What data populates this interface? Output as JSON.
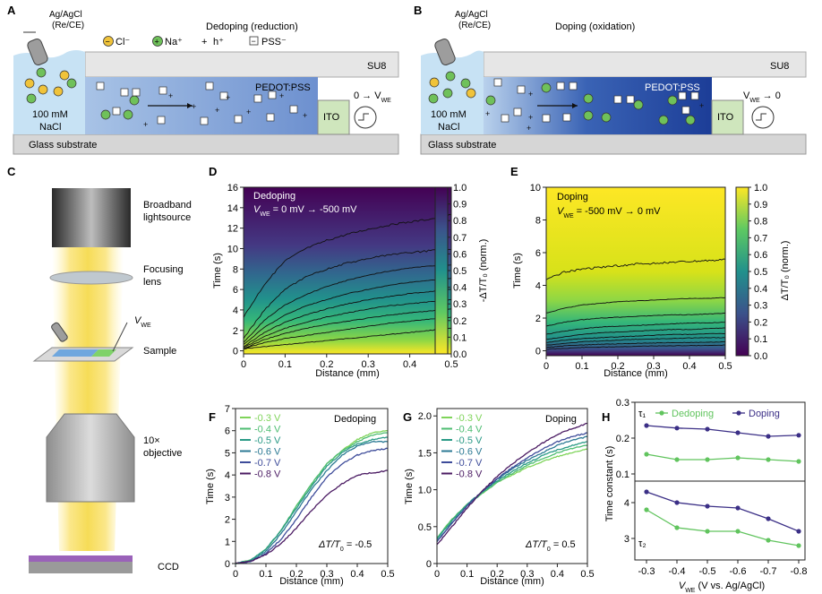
{
  "panel_a": {
    "letter": "A",
    "title": "Dedoping (reduction)",
    "electrode": [
      "Ag/AgCl",
      "(Re/CE)"
    ],
    "legend": {
      "cl": "Cl⁻",
      "na": "Na⁺",
      "h": "h⁺",
      "pss": "PSS⁻"
    },
    "su8": "SU8",
    "film": "PEDOT:PSS",
    "electrolyte": [
      "100 mM",
      "NaCl"
    ],
    "ito": "ITO",
    "voltage": "0 → V",
    "voltage_sub": "WE",
    "substrate": "Glass substrate"
  },
  "panel_b": {
    "letter": "B",
    "title": "Doping (oxidation)",
    "electrode": [
      "Ag/AgCl",
      "(Re/CE)"
    ],
    "su8": "SU8",
    "film": "PEDOT:PSS",
    "electrolyte": [
      "100 mM",
      "NaCl"
    ],
    "ito": "ITO",
    "voltage": "V",
    "voltage_sub": "WE",
    "voltage_tail": " → 0",
    "substrate": "Glass substrate"
  },
  "panel_c": {
    "letter": "C",
    "labels": [
      "Broadband",
      "lightsource",
      "Focusing",
      "lens",
      "Sample",
      "10×",
      "objective",
      "CCD"
    ],
    "vwe": "V",
    "vwe_sub": "WE"
  },
  "colors": {
    "dedoping": "#61c45e",
    "doping": "#3b2f86",
    "pedot_dark": "#24449c",
    "pedot_light": "#a8c3e6",
    "electrolyte": "#c7e2f4",
    "ito": "#cfe6bd",
    "glass": "#d6d6d6"
  },
  "chart_data": [
    {
      "panel": "D",
      "type": "heatmap",
      "title": "Dedoping",
      "subtitle": [
        "V",
        "WE",
        " = 0 mV → -500 mV"
      ],
      "xlabel": "Distance (mm)",
      "ylabel": "Time (s)",
      "xlim": [
        0,
        0.5
      ],
      "ylim": [
        -0.3,
        16
      ],
      "xticks": [
        "0",
        "0.1",
        "0.2",
        "0.3",
        "0.4",
        "0.5"
      ],
      "yticks": [
        "0",
        "2",
        "4",
        "6",
        "8",
        "10",
        "12",
        "14",
        "16"
      ],
      "colorbar": {
        "label": "-ΔT/T₀ (norm.)",
        "ticks": [
          "1.0",
          "0.9",
          "0.8",
          "0.7",
          "0.6",
          "0.5",
          "0.4",
          "0.3",
          "0.2",
          "0.1",
          "0.0"
        ]
      },
      "contours": [
        {
          "level": 0.1,
          "values": [
            0.2,
            0.4,
            0.6,
            0.8,
            1.0,
            1.2,
            1.4,
            1.6,
            1.8,
            2.0,
            2.2
          ]
        },
        {
          "level": 0.2,
          "values": [
            0.2,
            0.8,
            1.2,
            1.5,
            1.8,
            2.1,
            2.4,
            2.7,
            2.9,
            3.1,
            3.3
          ]
        },
        {
          "level": 0.3,
          "values": [
            0.2,
            1.1,
            1.7,
            2.2,
            2.6,
            2.9,
            3.2,
            3.5,
            3.7,
            3.9,
            4.1
          ]
        },
        {
          "level": 0.4,
          "values": [
            0.3,
            1.4,
            2.2,
            2.8,
            3.3,
            3.7,
            4.1,
            4.4,
            4.6,
            4.8,
            5.0
          ]
        },
        {
          "level": 0.5,
          "values": [
            0.4,
            1.8,
            2.8,
            3.5,
            4.1,
            4.6,
            5.0,
            5.3,
            5.6,
            5.8,
            6.0
          ]
        },
        {
          "level": 0.6,
          "values": [
            0.6,
            2.3,
            3.5,
            4.4,
            5.0,
            5.6,
            6.0,
            6.4,
            6.7,
            6.9,
            7.1
          ]
        },
        {
          "level": 0.7,
          "values": [
            0.8,
            3.0,
            4.5,
            5.5,
            6.3,
            6.9,
            7.4,
            7.8,
            8.1,
            8.3,
            8.4
          ]
        },
        {
          "level": 0.8,
          "values": [
            1.2,
            4.0,
            6.0,
            7.2,
            8.0,
            8.6,
            9.0,
            9.4,
            9.6,
            9.8,
            9.9
          ]
        },
        {
          "level": 0.9,
          "values": [
            3.3,
            6.5,
            8.8,
            10.0,
            10.8,
            11.4,
            11.9,
            12.3,
            12.6,
            12.9,
            13.3
          ]
        }
      ]
    },
    {
      "panel": "E",
      "type": "heatmap",
      "title": "Doping",
      "subtitle": [
        "V",
        "WE",
        " = -500 mV → 0 mV"
      ],
      "xlabel": "Distance (mm)",
      "ylabel": "Time (s)",
      "xlim": [
        0,
        0.5
      ],
      "ylim": [
        -0.3,
        10
      ],
      "xticks": [
        "0",
        "0.1",
        "0.2",
        "0.3",
        "0.4",
        "0.5"
      ],
      "yticks": [
        "0",
        "2",
        "4",
        "6",
        "8",
        "10"
      ],
      "colorbar": {
        "label": "ΔT/T₀ (norm.)",
        "ticks": [
          "1.0",
          "0.9",
          "0.8",
          "0.7",
          "0.6",
          "0.5",
          "0.4",
          "0.3",
          "0.2",
          "0.1",
          "0.0"
        ]
      },
      "contours": [
        {
          "level": 0.1,
          "values": [
            0.1,
            0.15,
            0.2,
            0.22,
            0.25,
            0.27,
            0.3,
            0.3,
            0.32,
            0.33,
            0.35
          ]
        },
        {
          "level": 0.2,
          "values": [
            0.2,
            0.3,
            0.35,
            0.4,
            0.42,
            0.45,
            0.47,
            0.5,
            0.5,
            0.52,
            0.55
          ]
        },
        {
          "level": 0.3,
          "values": [
            0.35,
            0.45,
            0.55,
            0.6,
            0.65,
            0.7,
            0.72,
            0.75,
            0.78,
            0.8,
            0.8
          ]
        },
        {
          "level": 0.4,
          "values": [
            0.5,
            0.65,
            0.75,
            0.8,
            0.85,
            0.9,
            0.95,
            1.0,
            1.0,
            1.05,
            1.05
          ]
        },
        {
          "level": 0.5,
          "values": [
            0.7,
            0.85,
            1.0,
            1.1,
            1.15,
            1.2,
            1.25,
            1.3,
            1.3,
            1.35,
            1.4
          ]
        },
        {
          "level": 0.6,
          "values": [
            1.0,
            1.2,
            1.35,
            1.45,
            1.5,
            1.55,
            1.6,
            1.65,
            1.7,
            1.7,
            1.75
          ]
        },
        {
          "level": 0.7,
          "values": [
            1.5,
            1.75,
            1.9,
            2.0,
            2.05,
            2.1,
            2.15,
            2.2,
            2.2,
            2.25,
            2.3
          ]
        },
        {
          "level": 0.8,
          "values": [
            2.3,
            2.6,
            2.8,
            2.9,
            3.0,
            3.05,
            3.1,
            3.15,
            3.2,
            3.2,
            3.25
          ]
        },
        {
          "level": 0.9,
          "values": [
            4.4,
            4.8,
            5.0,
            5.1,
            5.2,
            5.3,
            5.35,
            5.4,
            5.45,
            5.5,
            5.6
          ]
        }
      ]
    },
    {
      "panel": "F",
      "type": "line",
      "title": "Dedoping",
      "annotation": [
        "ΔT/T",
        "0",
        " = -0.5"
      ],
      "xlabel": "Distance (mm)",
      "ylabel": "Time (s)",
      "xlim": [
        0,
        0.5
      ],
      "ylim": [
        0,
        7
      ],
      "x": [
        0,
        0.05,
        0.1,
        0.15,
        0.2,
        0.25,
        0.3,
        0.35,
        0.4,
        0.45,
        0.5
      ],
      "xticks": [
        "0",
        "0.1",
        "0.2",
        "0.3",
        "0.4",
        "0.5"
      ],
      "yticks": [
        "0",
        "1",
        "2",
        "3",
        "4",
        "5",
        "6",
        "7"
      ],
      "series": [
        {
          "name": "-0.3 V",
          "color": "#7fd45a",
          "values": [
            0,
            0.15,
            0.65,
            1.5,
            2.6,
            3.6,
            4.5,
            5.1,
            5.6,
            5.9,
            6.0
          ]
        },
        {
          "name": "-0.4 V",
          "color": "#4ebd72",
          "values": [
            0,
            0.15,
            0.65,
            1.5,
            2.6,
            3.6,
            4.5,
            5.1,
            5.5,
            5.8,
            5.9
          ]
        },
        {
          "name": "-0.5 V",
          "color": "#2a9a86",
          "values": [
            0,
            0.15,
            0.65,
            1.5,
            2.5,
            3.5,
            4.4,
            5.0,
            5.4,
            5.6,
            5.7
          ]
        },
        {
          "name": "-0.6 V",
          "color": "#2c7a94",
          "values": [
            0,
            0.1,
            0.55,
            1.35,
            2.35,
            3.35,
            4.2,
            4.9,
            5.3,
            5.5,
            5.5
          ]
        },
        {
          "name": "-0.7 V",
          "color": "#3e4c9a",
          "values": [
            0,
            0.1,
            0.45,
            1.1,
            2.0,
            3.0,
            3.9,
            4.5,
            4.9,
            5.1,
            5.2
          ]
        },
        {
          "name": "-0.8 V",
          "color": "#4b1b63",
          "values": [
            0,
            0.1,
            0.4,
            0.9,
            1.6,
            2.4,
            3.1,
            3.6,
            4.0,
            4.1,
            4.2
          ]
        }
      ]
    },
    {
      "panel": "G",
      "type": "line",
      "title": "Doping",
      "annotation": [
        "ΔT/T",
        "0",
        " = 0.5"
      ],
      "xlabel": "Distance (mm)",
      "ylabel": "Time (s)",
      "xlim": [
        0,
        0.5
      ],
      "ylim": [
        0,
        2.1
      ],
      "x": [
        0,
        0.05,
        0.1,
        0.15,
        0.2,
        0.25,
        0.3,
        0.35,
        0.4,
        0.45,
        0.5
      ],
      "xticks": [
        "0",
        "0.1",
        "0.2",
        "0.3",
        "0.4",
        "0.5"
      ],
      "yticks": [
        "0",
        "0.5",
        "1.0",
        "1.5",
        "2.0"
      ],
      "series": [
        {
          "name": "-0.3 V",
          "color": "#7fd45a",
          "values": [
            0.35,
            0.6,
            0.8,
            0.95,
            1.1,
            1.2,
            1.3,
            1.38,
            1.45,
            1.5,
            1.55
          ]
        },
        {
          "name": "-0.4 V",
          "color": "#4ebd72",
          "values": [
            0.35,
            0.6,
            0.8,
            0.95,
            1.1,
            1.22,
            1.33,
            1.42,
            1.5,
            1.56,
            1.6
          ]
        },
        {
          "name": "-0.5 V",
          "color": "#2a9a86",
          "values": [
            0.33,
            0.58,
            0.8,
            0.97,
            1.12,
            1.25,
            1.36,
            1.46,
            1.54,
            1.6,
            1.65
          ]
        },
        {
          "name": "-0.6 V",
          "color": "#2c7a94",
          "values": [
            0.3,
            0.55,
            0.78,
            0.97,
            1.14,
            1.28,
            1.4,
            1.5,
            1.6,
            1.67,
            1.72
          ]
        },
        {
          "name": "-0.7 V",
          "color": "#3e4c9a",
          "values": [
            0.3,
            0.55,
            0.78,
            0.98,
            1.15,
            1.3,
            1.43,
            1.55,
            1.65,
            1.72,
            1.77
          ]
        },
        {
          "name": "-0.8 V",
          "color": "#4b1b63",
          "values": [
            0.25,
            0.5,
            0.75,
            0.98,
            1.18,
            1.35,
            1.5,
            1.63,
            1.75,
            1.83,
            1.9
          ]
        }
      ]
    },
    {
      "panel": "H",
      "type": "line",
      "xlabel": [
        "V",
        "WE",
        " (V vs. Ag/AgCl)"
      ],
      "ylabel": "Time constant (s)",
      "categories": [
        "-0.3",
        "-0.4",
        "-0.5",
        "-0.6",
        "-0.7",
        "-0.8"
      ],
      "top": {
        "label": "τ₁",
        "ylim": [
          0.08,
          0.3
        ],
        "yticks": [
          "0.1",
          "0.2",
          "0.3"
        ],
        "series": [
          {
            "name": "Dedoping",
            "color": "#61c45e",
            "values": [
              0.155,
              0.14,
              0.14,
              0.145,
              0.14,
              0.135
            ]
          },
          {
            "name": "Doping",
            "color": "#3b2f86",
            "values": [
              0.235,
              0.228,
              0.225,
              0.215,
              0.205,
              0.208
            ]
          }
        ]
      },
      "bottom": {
        "label": "τ₂",
        "ylim": [
          2.4,
          4.6
        ],
        "yticks": [
          "3",
          "4"
        ],
        "series": [
          {
            "name": "Dedoping",
            "color": "#61c45e",
            "values": [
              3.8,
              3.3,
              3.2,
              3.2,
              2.95,
              2.8
            ]
          },
          {
            "name": "Doping",
            "color": "#3b2f86",
            "values": [
              4.3,
              4.0,
              3.9,
              3.85,
              3.55,
              3.2
            ]
          }
        ]
      }
    }
  ]
}
